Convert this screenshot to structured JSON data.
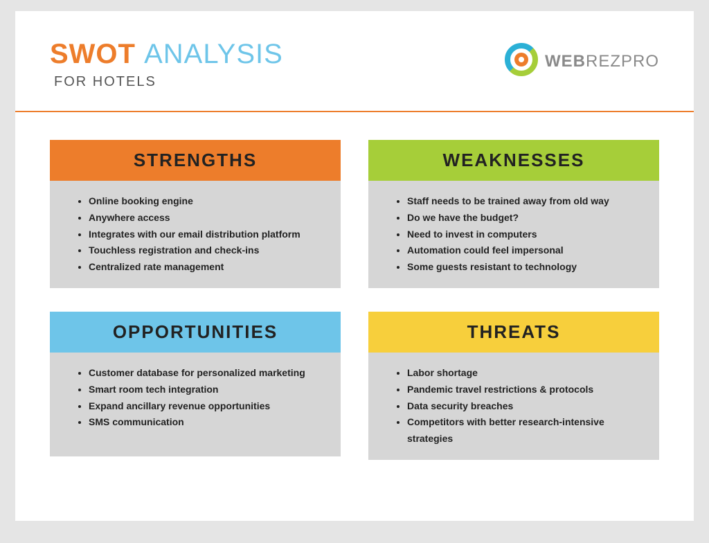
{
  "header": {
    "title_word1": "SWOT",
    "title_word2": "ANALYSIS",
    "subtitle": "FOR HOTELS",
    "title_color1": "#ed7d2b",
    "title_color2": "#6ec5e9",
    "title_fontsize": 40,
    "subtitle_fontsize": 20
  },
  "logo": {
    "text_bold": "WEB",
    "text_light": "REZPRO",
    "text_color": "#8a8a8a",
    "ring_color1": "#a6ce39",
    "ring_color2": "#2bb0d6",
    "center_color": "#ed7d2b"
  },
  "divider_color": "#ed7d2b",
  "background_color": "#e5e5e5",
  "page_color": "#ffffff",
  "body_panel_color": "#d6d6d6",
  "quad_header_fontsize": 26,
  "item_fontsize": 14,
  "quadrants": [
    {
      "key": "strengths",
      "label": "STRENGTHS",
      "header_color": "#ed7d2b",
      "items": [
        "Online booking engine",
        "Anywhere access",
        "Integrates with our email distribution platform",
        "Touchless registration and check-ins",
        "Centralized rate management"
      ]
    },
    {
      "key": "weaknesses",
      "label": "WEAKNESSES",
      "header_color": "#a6ce39",
      "items": [
        "Staff needs to be trained away from old way",
        "Do we have the budget?",
        "Need to invest in computers",
        "Automation could feel impersonal",
        "Some guests resistant to technology"
      ]
    },
    {
      "key": "opportunities",
      "label": "OPPORTUNITIES",
      "header_color": "#6ec5e9",
      "items": [
        "Customer database for personalized marketing",
        "Smart room tech integration",
        "Expand ancillary revenue opportunities",
        "SMS communication"
      ]
    },
    {
      "key": "threats",
      "label": "THREATS",
      "header_color": "#f7cf3c",
      "items": [
        "Labor shortage",
        "Pandemic travel restrictions & protocols",
        "Data security breaches",
        "Competitors with better research-intensive strategies"
      ]
    }
  ]
}
